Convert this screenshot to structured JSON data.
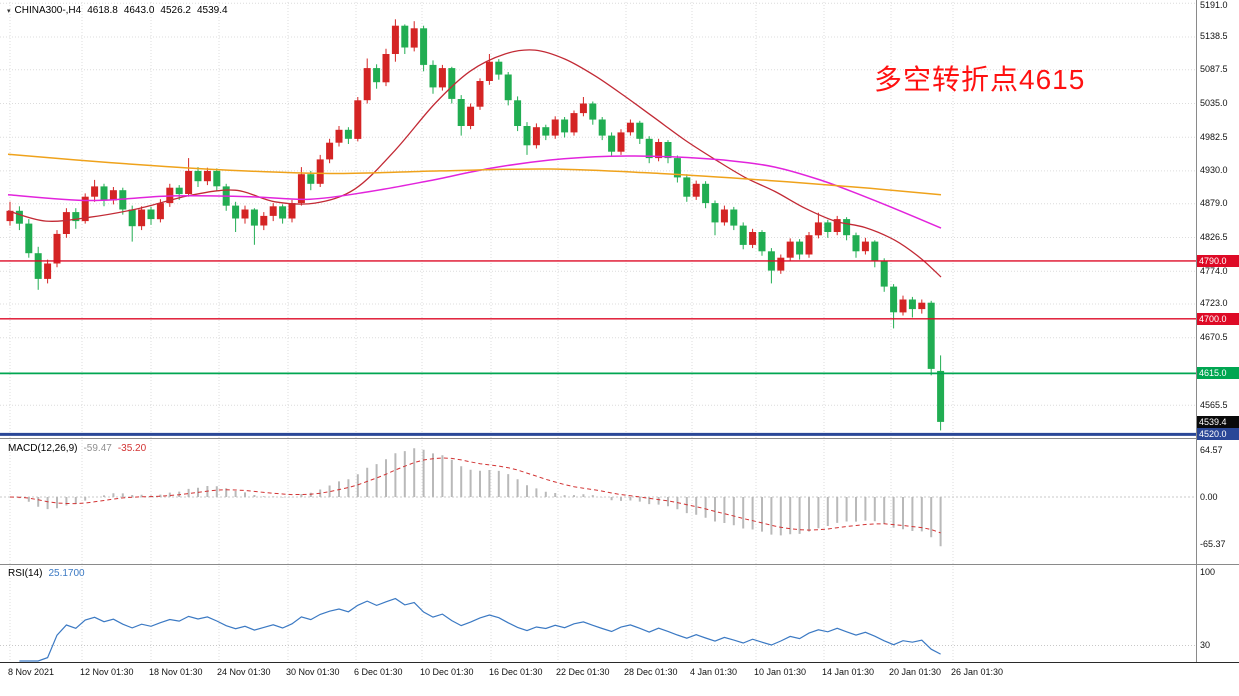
{
  "header": {
    "dropdown_icon": "▾",
    "title": "CHINA300-,H4",
    "open": "4618.8",
    "high": "4643.0",
    "low": "4526.2",
    "close": "4539.4"
  },
  "annotation": {
    "text": "多空转折点4615",
    "color": "#ff1111"
  },
  "chart_data": {
    "type": "candlestick",
    "title": "CHINA300-,H4",
    "grid": true,
    "legend_position": "none",
    "price_axis": {
      "min": 4516,
      "max": 5196,
      "ticks": [
        5191.0,
        5138.5,
        5087.5,
        5035.0,
        4982.5,
        4930.0,
        4879.0,
        4826.5,
        4774.0,
        4723.0,
        4670.5,
        4565.5
      ]
    },
    "x_axis": {
      "labels": [
        [
          "8 Nov 2021",
          8
        ],
        [
          "12 Nov 01:30",
          80
        ],
        [
          "18 Nov 01:30",
          149
        ],
        [
          "24 Nov 01:30",
          217
        ],
        [
          "30 Nov 01:30",
          286
        ],
        [
          "6 Dec 01:30",
          354
        ],
        [
          "10 Dec 01:30",
          420
        ],
        [
          "16 Dec 01:30",
          489
        ],
        [
          "22 Dec 01:30",
          556
        ],
        [
          "28 Dec 01:30",
          624
        ],
        [
          "4 Jan 01:30",
          690
        ],
        [
          "10 Jan 01:30",
          754
        ],
        [
          "14 Jan 01:30",
          822
        ],
        [
          "20 Jan 01:30",
          889
        ],
        [
          "26 Jan 01:30",
          951
        ]
      ]
    },
    "candles": [
      [
        4852,
        4882,
        4845,
        4868
      ],
      [
        4868,
        4875,
        4838,
        4848
      ],
      [
        4848,
        4855,
        4795,
        4802
      ],
      [
        4802,
        4812,
        4745,
        4762
      ],
      [
        4762,
        4792,
        4755,
        4786
      ],
      [
        4786,
        4838,
        4780,
        4832
      ],
      [
        4832,
        4872,
        4826,
        4866
      ],
      [
        4866,
        4872,
        4840,
        4852
      ],
      [
        4852,
        4895,
        4848,
        4890
      ],
      [
        4890,
        4916,
        4882,
        4906
      ],
      [
        4906,
        4910,
        4875,
        4884
      ],
      [
        4884,
        4905,
        4878,
        4900
      ],
      [
        4900,
        4904,
        4862,
        4870
      ],
      [
        4870,
        4876,
        4820,
        4844
      ],
      [
        4844,
        4875,
        4838,
        4870
      ],
      [
        4870,
        4874,
        4846,
        4855
      ],
      [
        4855,
        4886,
        4850,
        4880
      ],
      [
        4880,
        4910,
        4874,
        4904
      ],
      [
        4904,
        4908,
        4885,
        4894
      ],
      [
        4894,
        4950,
        4890,
        4930
      ],
      [
        4930,
        4936,
        4905,
        4914
      ],
      [
        4914,
        4935,
        4908,
        4930
      ],
      [
        4930,
        4934,
        4898,
        4906
      ],
      [
        4906,
        4910,
        4868,
        4876
      ],
      [
        4876,
        4882,
        4835,
        4856
      ],
      [
        4856,
        4876,
        4848,
        4870
      ],
      [
        4870,
        4872,
        4815,
        4845
      ],
      [
        4845,
        4866,
        4838,
        4860
      ],
      [
        4860,
        4880,
        4852,
        4875
      ],
      [
        4875,
        4878,
        4848,
        4856
      ],
      [
        4856,
        4885,
        4850,
        4880
      ],
      [
        4880,
        4936,
        4876,
        4925
      ],
      [
        4925,
        4930,
        4900,
        4910
      ],
      [
        4910,
        4955,
        4905,
        4948
      ],
      [
        4948,
        4980,
        4942,
        4974
      ],
      [
        4974,
        5000,
        4968,
        4994
      ],
      [
        4994,
        4998,
        4972,
        4980
      ],
      [
        4980,
        5045,
        4976,
        5040
      ],
      [
        5040,
        5105,
        5035,
        5090
      ],
      [
        5090,
        5096,
        5058,
        5068
      ],
      [
        5068,
        5120,
        5062,
        5112
      ],
      [
        5112,
        5166,
        5100,
        5156
      ],
      [
        5156,
        5158,
        5112,
        5122
      ],
      [
        5122,
        5163,
        5116,
        5152
      ],
      [
        5152,
        5156,
        5085,
        5095
      ],
      [
        5095,
        5102,
        5050,
        5060
      ],
      [
        5060,
        5095,
        5055,
        5090
      ],
      [
        5090,
        5092,
        5035,
        5042
      ],
      [
        5042,
        5048,
        4985,
        5000
      ],
      [
        5000,
        5035,
        4995,
        5030
      ],
      [
        5030,
        5074,
        5025,
        5070
      ],
      [
        5070,
        5112,
        5064,
        5100
      ],
      [
        5100,
        5104,
        5072,
        5080
      ],
      [
        5080,
        5084,
        5032,
        5040
      ],
      [
        5040,
        5046,
        4992,
        5000
      ],
      [
        5000,
        5006,
        4955,
        4970
      ],
      [
        4970,
        5004,
        4965,
        4998
      ],
      [
        4998,
        5002,
        4978,
        4985
      ],
      [
        4985,
        5015,
        4980,
        5010
      ],
      [
        5010,
        5014,
        4982,
        4990
      ],
      [
        4990,
        5024,
        4985,
        5020
      ],
      [
        5020,
        5045,
        5015,
        5035
      ],
      [
        5035,
        5038,
        5002,
        5010
      ],
      [
        5010,
        5014,
        4978,
        4985
      ],
      [
        4985,
        4990,
        4952,
        4960
      ],
      [
        4960,
        4995,
        4955,
        4990
      ],
      [
        4990,
        5010,
        4985,
        5005
      ],
      [
        5005,
        5008,
        4972,
        4980
      ],
      [
        4980,
        4984,
        4942,
        4950
      ],
      [
        4950,
        4980,
        4945,
        4975
      ],
      [
        4975,
        4978,
        4942,
        4950
      ],
      [
        4950,
        4954,
        4912,
        4920
      ],
      [
        4920,
        4925,
        4882,
        4890
      ],
      [
        4890,
        4915,
        4885,
        4910
      ],
      [
        4910,
        4914,
        4872,
        4880
      ],
      [
        4880,
        4884,
        4830,
        4850
      ],
      [
        4850,
        4876,
        4845,
        4870
      ],
      [
        4870,
        4874,
        4838,
        4845
      ],
      [
        4845,
        4850,
        4808,
        4815
      ],
      [
        4815,
        4840,
        4810,
        4835
      ],
      [
        4835,
        4838,
        4798,
        4805
      ],
      [
        4805,
        4810,
        4755,
        4775
      ],
      [
        4775,
        4800,
        4770,
        4795
      ],
      [
        4795,
        4825,
        4790,
        4820
      ],
      [
        4820,
        4824,
        4792,
        4800
      ],
      [
        4800,
        4835,
        4795,
        4830
      ],
      [
        4830,
        4865,
        4825,
        4850
      ],
      [
        4850,
        4854,
        4826,
        4835
      ],
      [
        4835,
        4860,
        4830,
        4855
      ],
      [
        4855,
        4858,
        4822,
        4830
      ],
      [
        4830,
        4834,
        4795,
        4805
      ],
      [
        4805,
        4826,
        4800,
        4820
      ],
      [
        4820,
        4822,
        4780,
        4790
      ],
      [
        4790,
        4794,
        4742,
        4750
      ],
      [
        4750,
        4754,
        4685,
        4710
      ],
      [
        4710,
        4736,
        4705,
        4730
      ],
      [
        4730,
        4734,
        4702,
        4715
      ],
      [
        4715,
        4730,
        4708,
        4725
      ],
      [
        4725,
        4728,
        4612,
        4622
      ],
      [
        4618.8,
        4643.0,
        4526.2,
        4539.4
      ]
    ],
    "moving_averages": [
      {
        "name": "ma-fast-red",
        "color": "#c22a35",
        "width": 1.3,
        "points": [
          [
            8,
            4868
          ],
          [
            46,
            4852
          ],
          [
            90,
            4858
          ],
          [
            140,
            4872
          ],
          [
            190,
            4892
          ],
          [
            235,
            4900
          ],
          [
            275,
            4882
          ],
          [
            315,
            4880
          ],
          [
            355,
            4902
          ],
          [
            395,
            4962
          ],
          [
            435,
            5035
          ],
          [
            470,
            5085
          ],
          [
            505,
            5112
          ],
          [
            535,
            5118
          ],
          [
            565,
            5104
          ],
          [
            595,
            5078
          ],
          [
            625,
            5046
          ],
          [
            655,
            5012
          ],
          [
            685,
            4978
          ],
          [
            715,
            4948
          ],
          [
            745,
            4920
          ],
          [
            775,
            4898
          ],
          [
            805,
            4872
          ],
          [
            835,
            4852
          ],
          [
            865,
            4842
          ],
          [
            895,
            4822
          ],
          [
            920,
            4795
          ],
          [
            941,
            4765
          ]
        ]
      },
      {
        "name": "ma-medium-magenta",
        "color": "#e224dc",
        "width": 1.5,
        "points": [
          [
            8,
            4893
          ],
          [
            90,
            4884
          ],
          [
            170,
            4891
          ],
          [
            250,
            4890
          ],
          [
            310,
            4886
          ],
          [
            370,
            4898
          ],
          [
            430,
            4915
          ],
          [
            490,
            4934
          ],
          [
            550,
            4947
          ],
          [
            610,
            4953
          ],
          [
            670,
            4952
          ],
          [
            730,
            4946
          ],
          [
            775,
            4936
          ],
          [
            820,
            4916
          ],
          [
            860,
            4893
          ],
          [
            900,
            4868
          ],
          [
            941,
            4841
          ]
        ]
      },
      {
        "name": "ma-slow-orange",
        "color": "#efa21b",
        "width": 1.5,
        "points": [
          [
            8,
            4956
          ],
          [
            110,
            4943
          ],
          [
            220,
            4932
          ],
          [
            330,
            4926
          ],
          [
            440,
            4930
          ],
          [
            550,
            4933
          ],
          [
            660,
            4926
          ],
          [
            770,
            4915
          ],
          [
            870,
            4903
          ],
          [
            941,
            4893
          ]
        ]
      }
    ],
    "hlines": [
      {
        "price": 4790.0,
        "label": "4790.0",
        "color": "#de0a26",
        "width": 1.4
      },
      {
        "price": 4700.0,
        "label": "4700.0",
        "color": "#de0a26",
        "width": 1.4
      },
      {
        "price": 4615.0,
        "label": "4615.0",
        "color": "#00a651",
        "width": 1.8
      },
      {
        "price": 4520.0,
        "label": "4520.0",
        "color": "#2a4797",
        "width": 3
      }
    ],
    "current_price": {
      "value": 4539.4,
      "label": "4539.4",
      "badge_color": "#0a0a0a"
    },
    "macd": {
      "label": "MACD(12,26,9)",
      "main_value": "-59.47",
      "signal_value": "-35.20",
      "fast": 12,
      "slow": 26,
      "signal_period": 9,
      "hist_color": "#b9b9b9",
      "signal_color": "#d23333",
      "ticks": [
        [
          "64.57",
          64.57
        ],
        [
          "0.00",
          0
        ],
        [
          "-65.37",
          -65.37
        ]
      ]
    },
    "rsi": {
      "label": "RSI(14)",
      "value": "25.1700",
      "period": 14,
      "color": "#3b79c3",
      "level": 30,
      "ticks": [
        [
          "100",
          100
        ],
        [
          "30",
          30
        ]
      ]
    },
    "colors": {
      "up": "#d42424",
      "down": "#21ad52",
      "grid": "#dcdcdc",
      "separator": "#8a8a8a",
      "axis_line": "#2a2a2a",
      "scale_text": "#111111"
    }
  }
}
